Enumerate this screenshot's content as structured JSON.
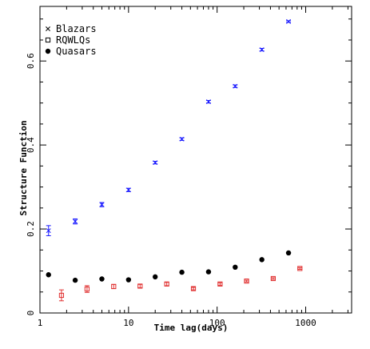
{
  "chart_data": {
    "type": "scatter",
    "xlabel": "Time lag(days)",
    "ylabel": "Structure Function",
    "x_scale": "log",
    "xlim": [
      1,
      3300
    ],
    "ylim": [
      0,
      0.73
    ],
    "x_ticks": [
      {
        "value": 1,
        "label": "1"
      },
      {
        "value": 10,
        "label": "10"
      },
      {
        "value": 100,
        "label": "100"
      },
      {
        "value": 1000,
        "label": "1000"
      }
    ],
    "y_ticks": [
      {
        "value": 0,
        "label": "0"
      },
      {
        "value": 0.2,
        "label": "0.2"
      },
      {
        "value": 0.4,
        "label": "0.4"
      },
      {
        "value": 0.6,
        "label": "0.6"
      }
    ],
    "legend_position": "top-left",
    "grid": false,
    "series": [
      {
        "name": "Blazars",
        "marker": "x",
        "color": "#1a1aff",
        "points": [
          {
            "x": 1.25,
            "y": 0.196,
            "err": 0.012
          },
          {
            "x": 2.5,
            "y": 0.218,
            "err": 0.006
          },
          {
            "x": 5.0,
            "y": 0.258,
            "err": 0.005
          },
          {
            "x": 10.0,
            "y": 0.293,
            "err": 0.004
          },
          {
            "x": 20.0,
            "y": 0.358,
            "err": 0.003
          },
          {
            "x": 40.0,
            "y": 0.414,
            "err": 0.003
          },
          {
            "x": 80.0,
            "y": 0.503,
            "err": 0.003
          },
          {
            "x": 160.0,
            "y": 0.54,
            "err": 0.003
          },
          {
            "x": 320.0,
            "y": 0.627,
            "err": 0.003
          },
          {
            "x": 640.0,
            "y": 0.694,
            "err": 0.002
          }
        ]
      },
      {
        "name": "RQWLQs",
        "marker": "square",
        "color": "#e03030",
        "points": [
          {
            "x": 1.75,
            "y": 0.042,
            "err": 0.013
          },
          {
            "x": 3.4,
            "y": 0.057,
            "err": 0.008
          },
          {
            "x": 6.8,
            "y": 0.063,
            "err": 0.005
          },
          {
            "x": 13.5,
            "y": 0.064,
            "err": 0.004
          },
          {
            "x": 27.0,
            "y": 0.069,
            "err": 0.004
          },
          {
            "x": 54.0,
            "y": 0.058,
            "err": 0.003
          },
          {
            "x": 108.0,
            "y": 0.069,
            "err": 0.003
          },
          {
            "x": 215.0,
            "y": 0.076,
            "err": 0.002
          },
          {
            "x": 430.0,
            "y": 0.082,
            "err": 0.002
          },
          {
            "x": 860.0,
            "y": 0.106,
            "err": 0.002
          }
        ]
      },
      {
        "name": "Quasars",
        "marker": "filled-circle",
        "color": "#000000",
        "points": [
          {
            "x": 1.25,
            "y": 0.091
          },
          {
            "x": 2.5,
            "y": 0.078
          },
          {
            "x": 5.0,
            "y": 0.081
          },
          {
            "x": 10.0,
            "y": 0.079
          },
          {
            "x": 20.0,
            "y": 0.086
          },
          {
            "x": 40.0,
            "y": 0.097
          },
          {
            "x": 80.0,
            "y": 0.098
          },
          {
            "x": 160.0,
            "y": 0.109
          },
          {
            "x": 320.0,
            "y": 0.127
          },
          {
            "x": 640.0,
            "y": 0.143
          }
        ]
      }
    ]
  }
}
